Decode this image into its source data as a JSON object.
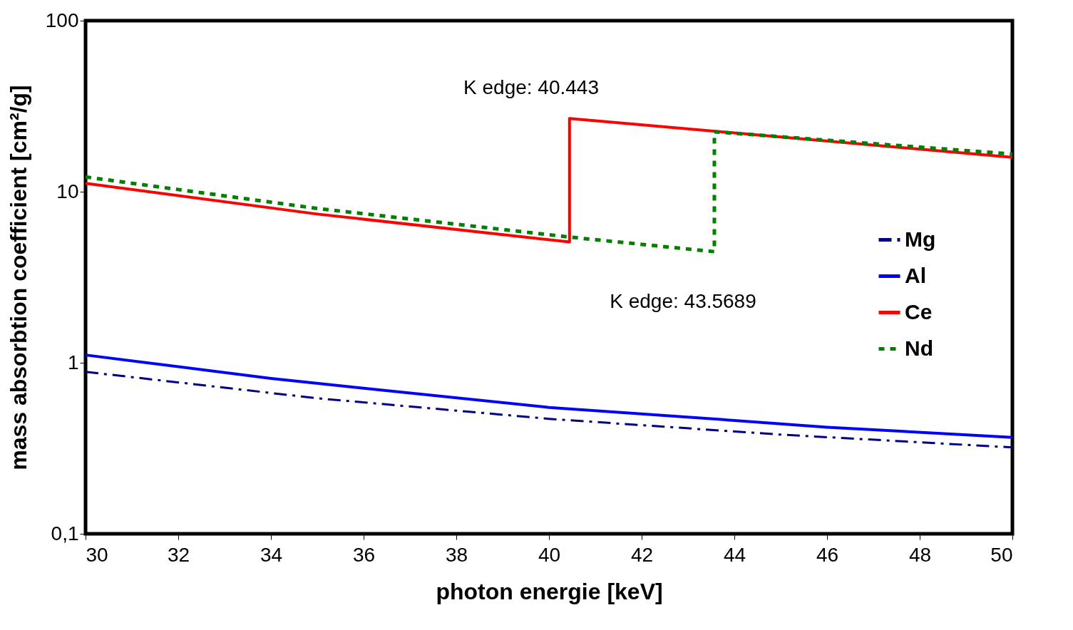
{
  "chart_data": {
    "type": "line",
    "xlabel": "photon energie [keV]",
    "ylabel": "mass absorbtion coefficient [cm²/g]",
    "xlim": [
      30,
      50
    ],
    "xticks": [
      30,
      32,
      34,
      36,
      38,
      40,
      42,
      44,
      46,
      48,
      50
    ],
    "ylim": [
      0.1,
      100
    ],
    "yticks": [
      {
        "value": 0.1,
        "label": "0,1"
      },
      1,
      10,
      100
    ],
    "log": "y",
    "grid": false,
    "legend": "right",
    "marker": "none",
    "series": [
      {
        "name": "Mg",
        "color": "#000080",
        "line_style": "dashdot",
        "x": [
          30,
          35,
          40,
          45,
          50
        ],
        "values": [
          0.885,
          0.62,
          0.47,
          0.38,
          0.32
        ]
      },
      {
        "name": "Al",
        "color": "#0000ff",
        "line_style": "solid",
        "x": [
          30,
          34,
          36,
          40,
          44,
          46,
          50
        ],
        "values": [
          1.11,
          0.81,
          0.71,
          0.548,
          0.46,
          0.42,
          0.366
        ]
      },
      {
        "name": "Ce",
        "color": "#ff0000",
        "line_style": "solid",
        "x": [
          30,
          35,
          40.443,
          40.443,
          50
        ],
        "values": [
          11.2,
          7.4,
          5.08,
          26.8,
          15.9
        ]
      },
      {
        "name": "Nd",
        "color": "#008000",
        "line_style": "dotted",
        "x": [
          30,
          35,
          40.443,
          43.5689,
          43.5689,
          50
        ],
        "values": [
          12.2,
          7.98,
          5.43,
          4.46,
          22.4,
          16.6
        ]
      }
    ],
    "annotations": [
      "K edge: 40.443",
      "K edge: 43.5689"
    ]
  }
}
